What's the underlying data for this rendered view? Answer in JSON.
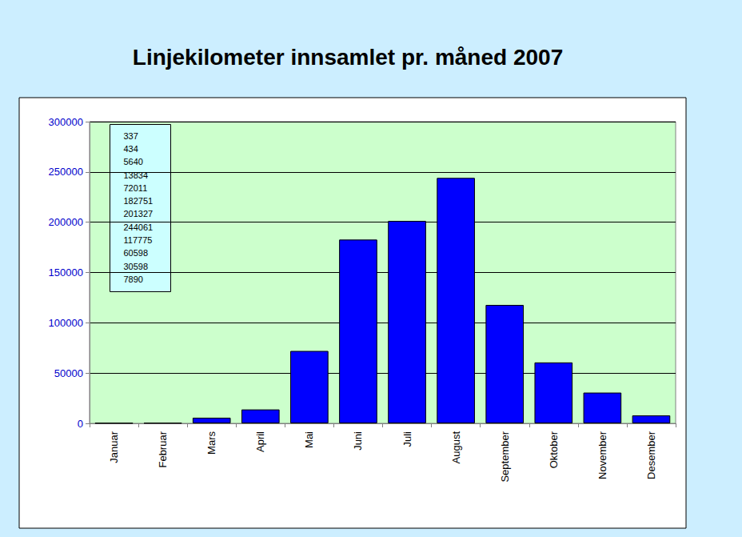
{
  "chart_data": {
    "type": "bar",
    "title": "Linjekilometer innsamlet pr. måned 2007",
    "categories": [
      "Januar",
      "Februar",
      "Mars",
      "April",
      "Mai",
      "Juni",
      "Juli",
      "August",
      "September",
      "Oktober",
      "November",
      "Desember"
    ],
    "values": [
      337,
      434,
      5640,
      13834,
      72011,
      182751,
      201327,
      244061,
      117775,
      60598,
      30598,
      7890
    ],
    "color": "#0000ff",
    "ylim": [
      0,
      300000
    ],
    "yticks": [
      0,
      50000,
      100000,
      150000,
      200000,
      250000,
      300000
    ],
    "grid": true
  }
}
